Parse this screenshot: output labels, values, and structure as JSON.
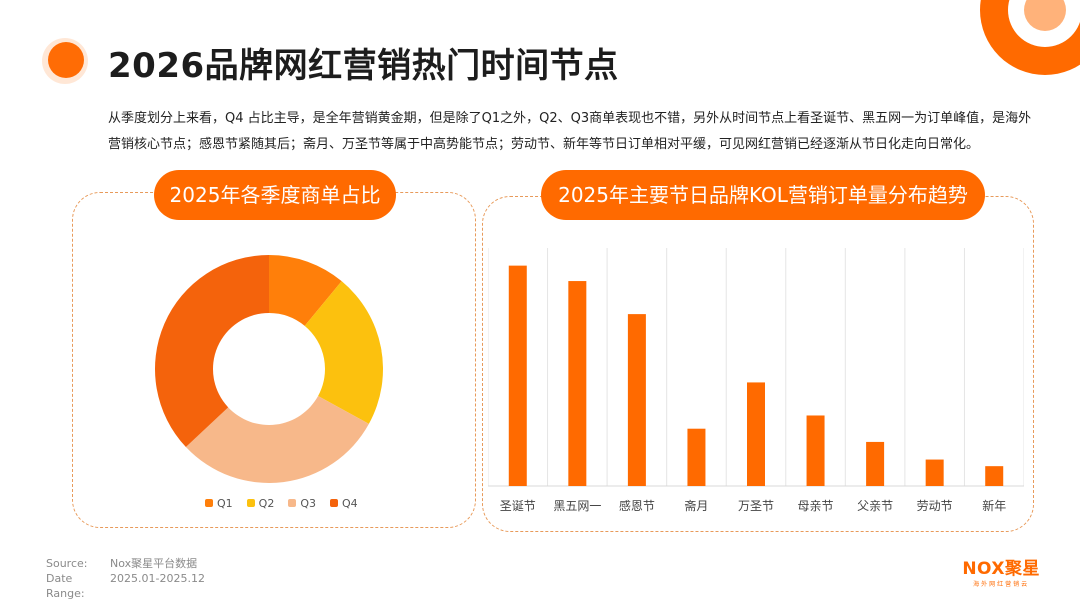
{
  "title": "2026品牌网红营销热门时间节点",
  "intro": "从季度划分上来看，Q4 占比主导，是全年营销黄金期，但是除了Q1之外，Q2、Q3商单表现也不错，另外从时间节点上看圣诞节、黑五网一为订单峰值，是海外营销核心节点；感恩节紧随其后；斋月、万圣节等属于中高势能节点；劳动节、新年等节日订单相对平缓，可见网红营销已经逐渐从节日化走向日常化。",
  "colors": {
    "accent": "#ff6a00",
    "q1": "#ff7f0a",
    "q2": "#fcc10e",
    "q3": "#f7b88a",
    "q4": "#f4630c",
    "bar": "#ff6a00"
  },
  "chart_data": [
    {
      "type": "pie",
      "title": "2025年各季度商单占比",
      "categories": [
        "Q1",
        "Q2",
        "Q3",
        "Q4"
      ],
      "values": [
        11,
        22,
        30,
        37
      ]
    },
    {
      "type": "bar",
      "title": "2025年主要节日品牌KOL营销订单量分布趋势",
      "categories": [
        "圣诞节",
        "黑五网一",
        "感恩节",
        "斋月",
        "万圣节",
        "母亲节",
        "父亲节",
        "劳动节",
        "新年"
      ],
      "values": [
        100,
        93,
        78,
        26,
        47,
        32,
        20,
        12,
        9
      ],
      "ylim": [
        0,
        108
      ],
      "grid": "vertical"
    }
  ],
  "source": {
    "source_label": "Source:",
    "source_value": "Nox聚星平台数据",
    "range_label": "Date Range:",
    "range_value": "2025.01-2025.12"
  },
  "logo": {
    "main": "NOX聚星",
    "sub": "海外网红营销云"
  }
}
